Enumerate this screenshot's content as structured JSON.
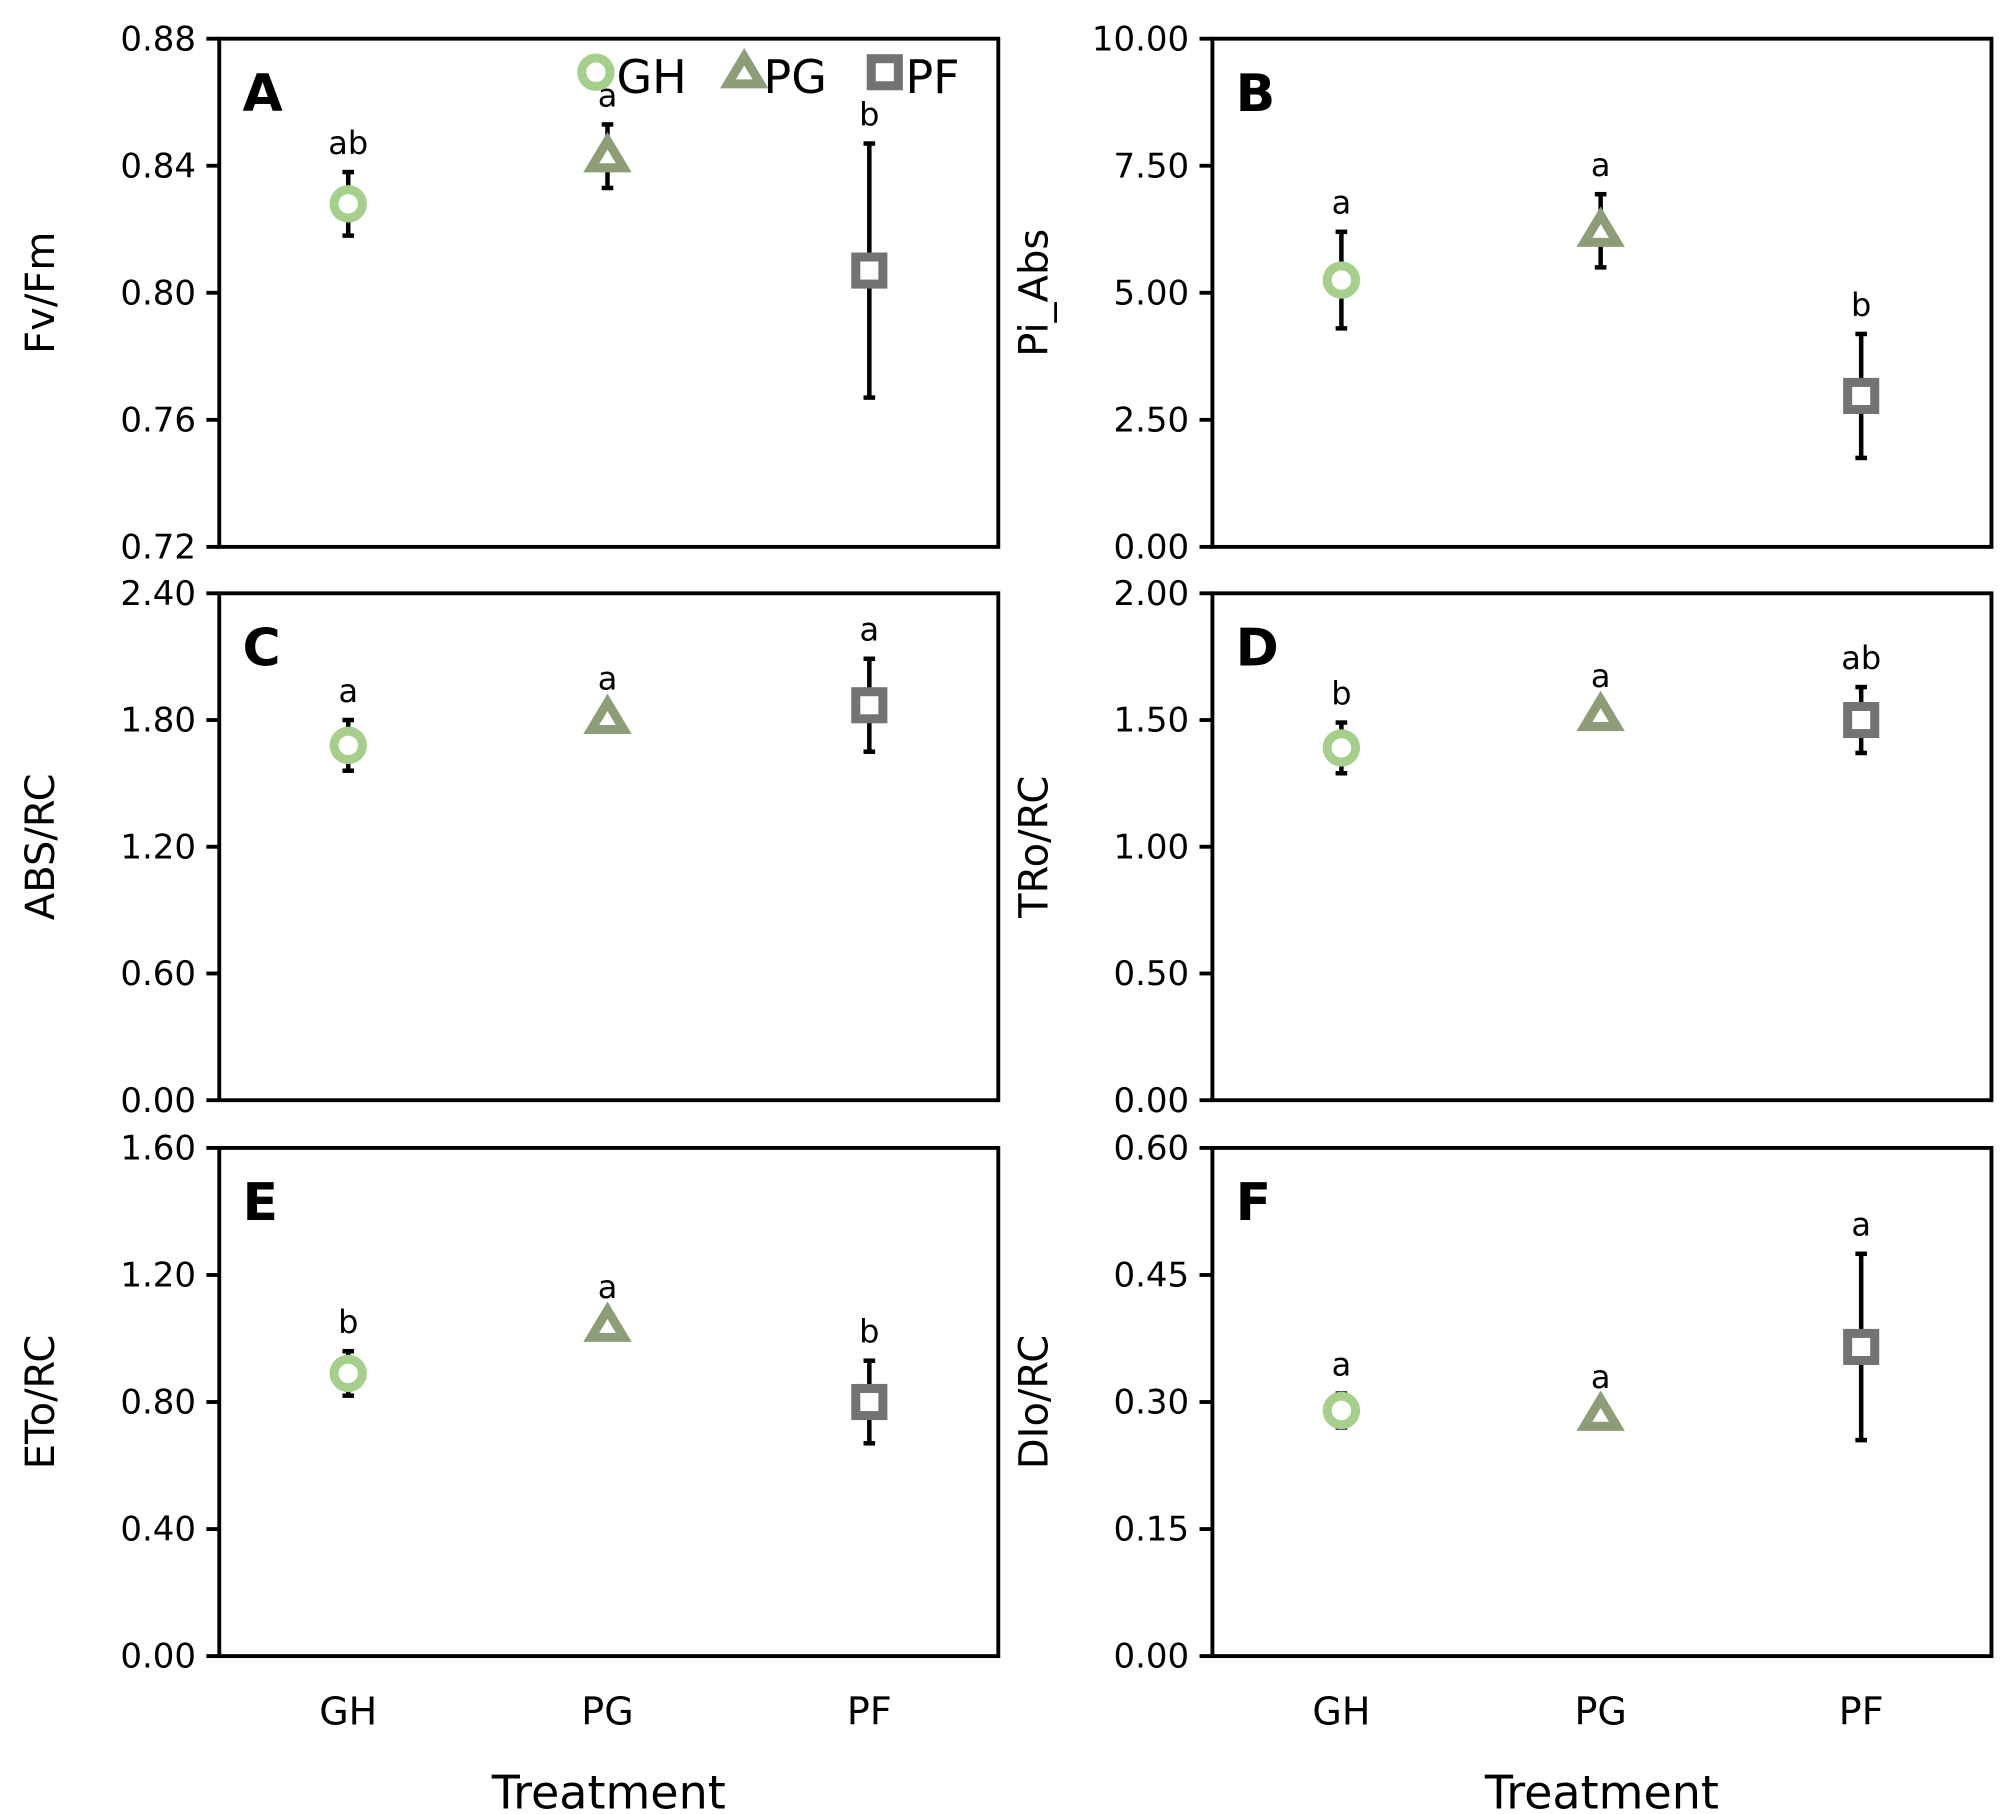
{
  "colors": {
    "GH": "#a6cf8b",
    "PG": "#8c9d78",
    "PF": "#737373",
    "axis": "#000000",
    "errorbar": "#000000"
  },
  "legend": {
    "placement": "top-right of panel A",
    "entries": [
      {
        "label": "GH",
        "marker": "circle"
      },
      {
        "label": "PG",
        "marker": "triangle"
      },
      {
        "label": "PF",
        "marker": "square"
      }
    ]
  },
  "x_title": "Treatment",
  "chart_data": [
    {
      "type": "scatter",
      "panel": "A",
      "ylabel": "Fv/Fm",
      "ylim": [
        0.72,
        0.88
      ],
      "yticks": [
        "0.72",
        "0.76",
        "0.80",
        "0.84",
        "0.88"
      ],
      "categories": [
        "GH",
        "PG",
        "PF"
      ],
      "values": [
        0.828,
        0.843,
        0.807
      ],
      "errors": [
        0.01,
        0.01,
        0.04
      ],
      "significance": [
        "ab",
        "a",
        "b"
      ]
    },
    {
      "type": "scatter",
      "panel": "B",
      "ylabel": "Pi_Abs",
      "ylim": [
        0,
        10
      ],
      "yticks": [
        "0.00",
        "2.50",
        "5.00",
        "7.50",
        "10.00"
      ],
      "categories": [
        "GH",
        "PG",
        "PF"
      ],
      "values": [
        5.25,
        6.22,
        2.97
      ],
      "errors": [
        0.95,
        0.72,
        1.22
      ],
      "significance": [
        "a",
        "a",
        "b"
      ]
    },
    {
      "type": "scatter",
      "panel": "C",
      "ylabel": "ABS/RC",
      "ylim": [
        0,
        2.4
      ],
      "yticks": [
        "0.00",
        "0.60",
        "1.20",
        "1.80",
        "2.40"
      ],
      "categories": [
        "GH",
        "PG",
        "PF"
      ],
      "values": [
        1.68,
        1.81,
        1.87
      ],
      "errors": [
        0.12,
        0.05,
        0.22
      ],
      "significance": [
        "a",
        "a",
        "a"
      ]
    },
    {
      "type": "scatter",
      "panel": "D",
      "ylabel": "TRo/RC",
      "ylim": [
        0,
        2.0
      ],
      "yticks": [
        "0.00",
        "0.50",
        "1.00",
        "1.50",
        "2.00"
      ],
      "categories": [
        "GH",
        "PG",
        "PF"
      ],
      "values": [
        1.39,
        1.52,
        1.5
      ],
      "errors": [
        0.1,
        0.04,
        0.13
      ],
      "significance": [
        "b",
        "a",
        "ab"
      ]
    },
    {
      "type": "scatter",
      "panel": "E",
      "ylabel": "ETo/RC",
      "ylim": [
        0,
        1.6
      ],
      "yticks": [
        "0.00",
        "0.40",
        "0.80",
        "1.20",
        "1.60"
      ],
      "categories": [
        "GH",
        "PG",
        "PF"
      ],
      "values": [
        0.89,
        1.04,
        0.8
      ],
      "errors": [
        0.07,
        0.03,
        0.13
      ],
      "significance": [
        "b",
        "a",
        "b"
      ]
    },
    {
      "type": "scatter",
      "panel": "F",
      "ylabel": "DIo/RC",
      "ylim": [
        0,
        0.6
      ],
      "yticks": [
        "0.00",
        "0.15",
        "0.30",
        "0.45",
        "0.60"
      ],
      "categories": [
        "GH",
        "PG",
        "PF"
      ],
      "values": [
        0.29,
        0.285,
        0.365
      ],
      "errors": [
        0.02,
        0.01,
        0.11
      ],
      "significance": [
        "a",
        "a",
        "a"
      ]
    }
  ]
}
